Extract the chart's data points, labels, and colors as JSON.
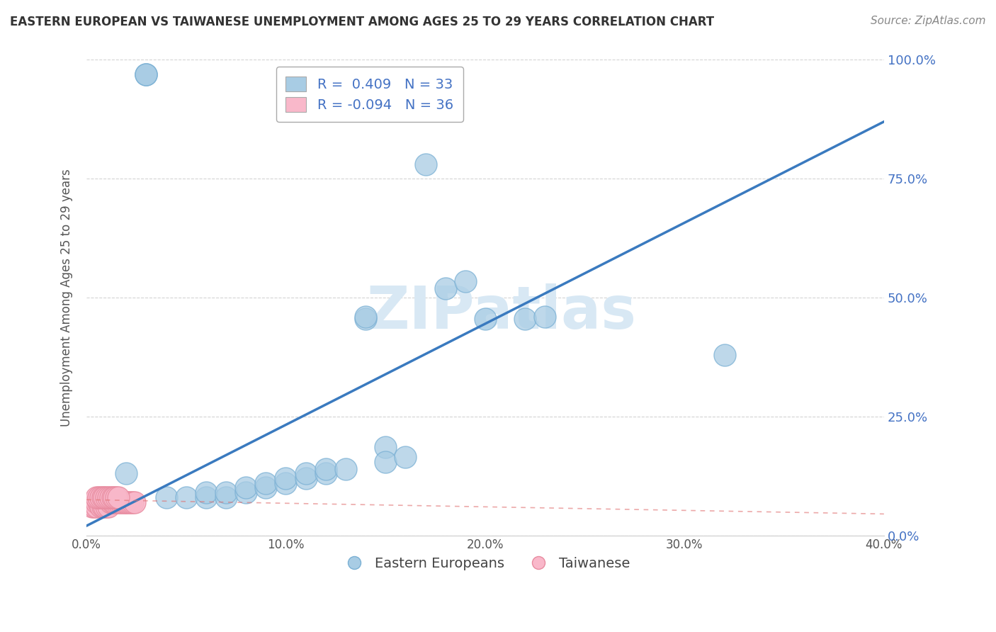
{
  "title": "EASTERN EUROPEAN VS TAIWANESE UNEMPLOYMENT AMONG AGES 25 TO 29 YEARS CORRELATION CHART",
  "source": "Source: ZipAtlas.com",
  "ylabel": "Unemployment Among Ages 25 to 29 years",
  "background_color": "#ffffff",
  "r_blue": 0.409,
  "n_blue": 33,
  "r_pink": -0.094,
  "n_pink": 36,
  "xlim": [
    0,
    0.4
  ],
  "ylim": [
    0,
    1.0
  ],
  "xtick_vals": [
    0.0,
    0.1,
    0.2,
    0.3,
    0.4
  ],
  "xtick_labels": [
    "0.0%",
    "10.0%",
    "20.0%",
    "30.0%",
    "40.0%"
  ],
  "ytick_vals": [
    0.0,
    0.25,
    0.5,
    0.75,
    1.0
  ],
  "ytick_labels": [
    "0.0%",
    "25.0%",
    "50.0%",
    "75.0%",
    "100.0%"
  ],
  "blue_x": [
    0.03,
    0.03,
    0.03,
    0.02,
    0.04,
    0.05,
    0.06,
    0.06,
    0.07,
    0.07,
    0.08,
    0.08,
    0.09,
    0.09,
    0.1,
    0.1,
    0.11,
    0.11,
    0.12,
    0.12,
    0.13,
    0.14,
    0.14,
    0.15,
    0.17,
    0.18,
    0.19,
    0.2,
    0.22,
    0.23,
    0.32,
    0.15,
    0.16
  ],
  "blue_y": [
    0.97,
    0.97,
    0.97,
    0.13,
    0.08,
    0.08,
    0.08,
    0.09,
    0.08,
    0.09,
    0.09,
    0.1,
    0.1,
    0.11,
    0.11,
    0.12,
    0.12,
    0.13,
    0.13,
    0.14,
    0.14,
    0.455,
    0.46,
    0.185,
    0.78,
    0.52,
    0.535,
    0.455,
    0.455,
    0.46,
    0.38,
    0.155,
    0.165
  ],
  "pink_x": [
    0.003,
    0.004,
    0.005,
    0.005,
    0.006,
    0.007,
    0.007,
    0.008,
    0.009,
    0.01,
    0.011,
    0.012,
    0.013,
    0.014,
    0.015,
    0.016,
    0.017,
    0.018,
    0.019,
    0.02,
    0.021,
    0.022,
    0.023,
    0.024,
    0.005,
    0.006,
    0.007,
    0.008,
    0.009,
    0.01,
    0.011,
    0.012,
    0.013,
    0.014,
    0.015,
    0.016
  ],
  "pink_y": [
    0.06,
    0.06,
    0.06,
    0.07,
    0.07,
    0.07,
    0.06,
    0.06,
    0.06,
    0.06,
    0.06,
    0.07,
    0.07,
    0.07,
    0.07,
    0.07,
    0.07,
    0.07,
    0.07,
    0.07,
    0.07,
    0.07,
    0.07,
    0.07,
    0.08,
    0.08,
    0.08,
    0.08,
    0.08,
    0.08,
    0.08,
    0.08,
    0.08,
    0.08,
    0.08,
    0.08
  ],
  "blue_line_x0": 0.0,
  "blue_line_y0": 0.02,
  "blue_line_x1": 0.4,
  "blue_line_y1": 0.87,
  "pink_line_x0": 0.0,
  "pink_line_y0": 0.075,
  "pink_line_x1": 0.4,
  "pink_line_y1": 0.045,
  "blue_color": "#a8cce4",
  "blue_edge_color": "#7ab0d4",
  "blue_line_color": "#3a7abf",
  "pink_color": "#f9b8ca",
  "pink_edge_color": "#e88ca0",
  "pink_line_color": "#e07070",
  "grid_color": "#c8c8c8",
  "ytick_color": "#4472c4",
  "xtick_color": "#555555",
  "title_color": "#333333",
  "source_color": "#888888",
  "legend_text_color": "#4472c4",
  "watermark_color": "#d8e8f4"
}
